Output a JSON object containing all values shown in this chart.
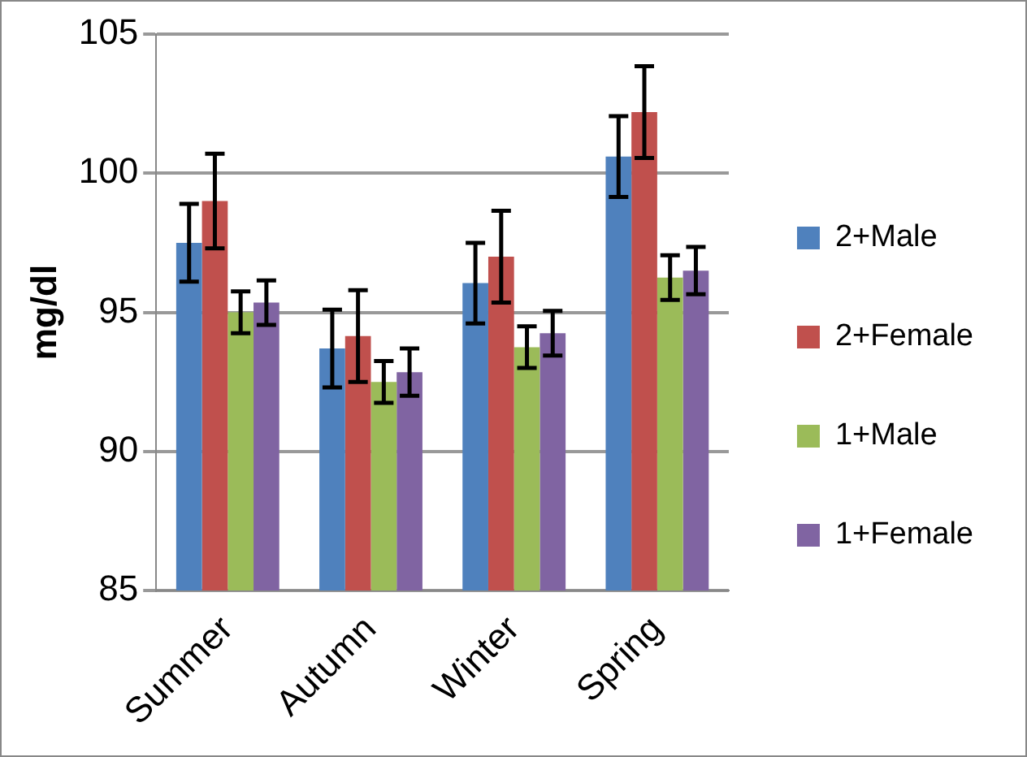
{
  "chart_data": {
    "type": "bar",
    "ylabel": "mg/dl",
    "categories": [
      "Summer",
      "Autumn",
      "Winter",
      "Spring"
    ],
    "series": [
      {
        "name": "2+Male",
        "color": "#4f81bd",
        "values": [
          97.5,
          93.7,
          96.05,
          100.6
        ],
        "errors": [
          1.4,
          1.4,
          1.45,
          1.45
        ]
      },
      {
        "name": "2+Female",
        "color": "#c0504d",
        "values": [
          99.0,
          94.15,
          97.0,
          102.2
        ],
        "errors": [
          1.7,
          1.65,
          1.65,
          1.65
        ]
      },
      {
        "name": "1+Male",
        "color": "#9bbb59",
        "values": [
          95.0,
          92.5,
          93.75,
          96.25
        ],
        "errors": [
          0.75,
          0.75,
          0.75,
          0.8
        ]
      },
      {
        "name": "1+Female",
        "color": "#8064a2",
        "values": [
          95.35,
          92.85,
          94.25,
          96.5
        ],
        "errors": [
          0.8,
          0.85,
          0.8,
          0.85
        ]
      }
    ],
    "ylim": [
      85,
      105
    ],
    "yticks": [
      85,
      90,
      95,
      100,
      105
    ],
    "grid": "y",
    "legend": "right"
  }
}
